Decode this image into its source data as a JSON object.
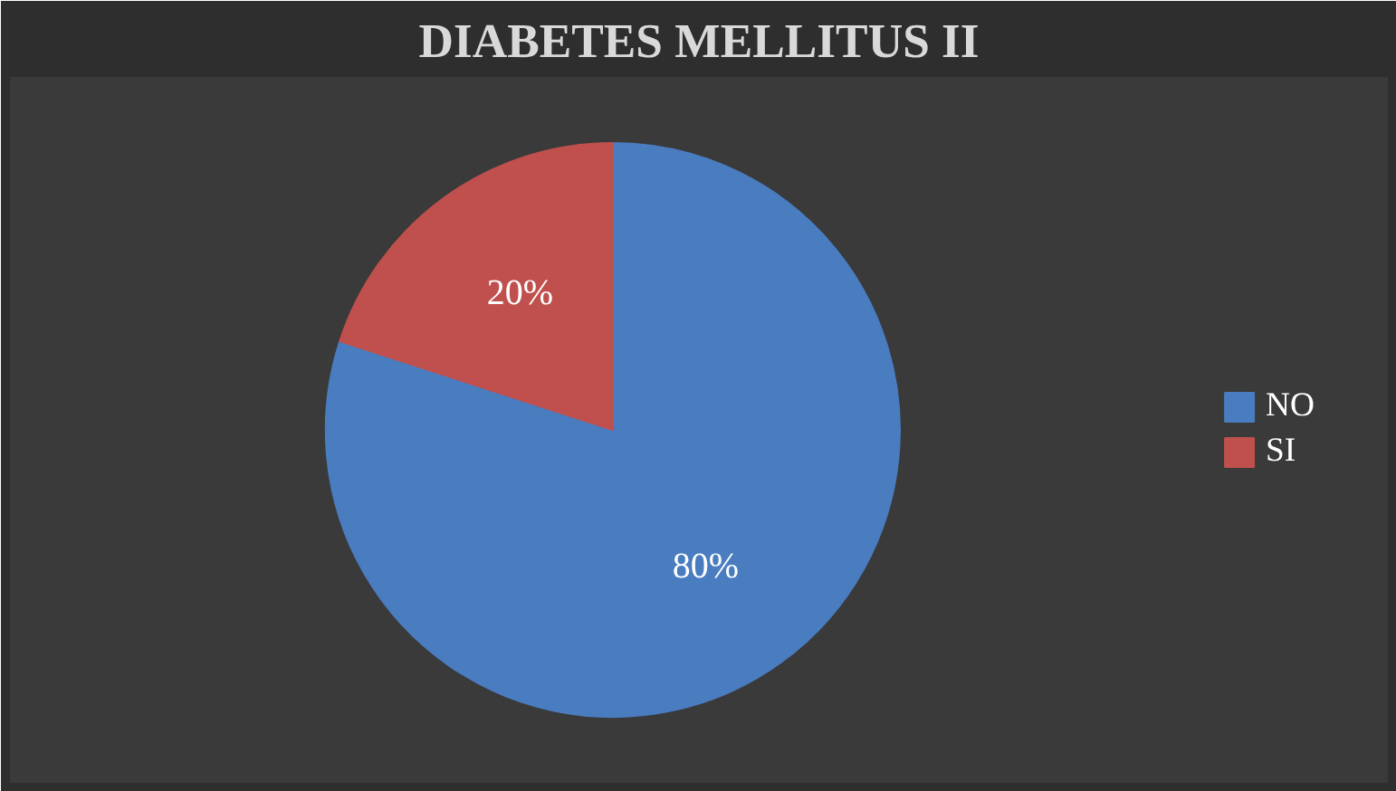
{
  "chart_data": {
    "type": "pie",
    "title": "DIABETES MELLITUS II",
    "categories": [
      "NO",
      "SI"
    ],
    "values": [
      80,
      20
    ],
    "colors": [
      "#4a7cc0",
      "#c0504d"
    ],
    "value_labels": [
      "80%",
      "20%"
    ],
    "legend": "right"
  }
}
